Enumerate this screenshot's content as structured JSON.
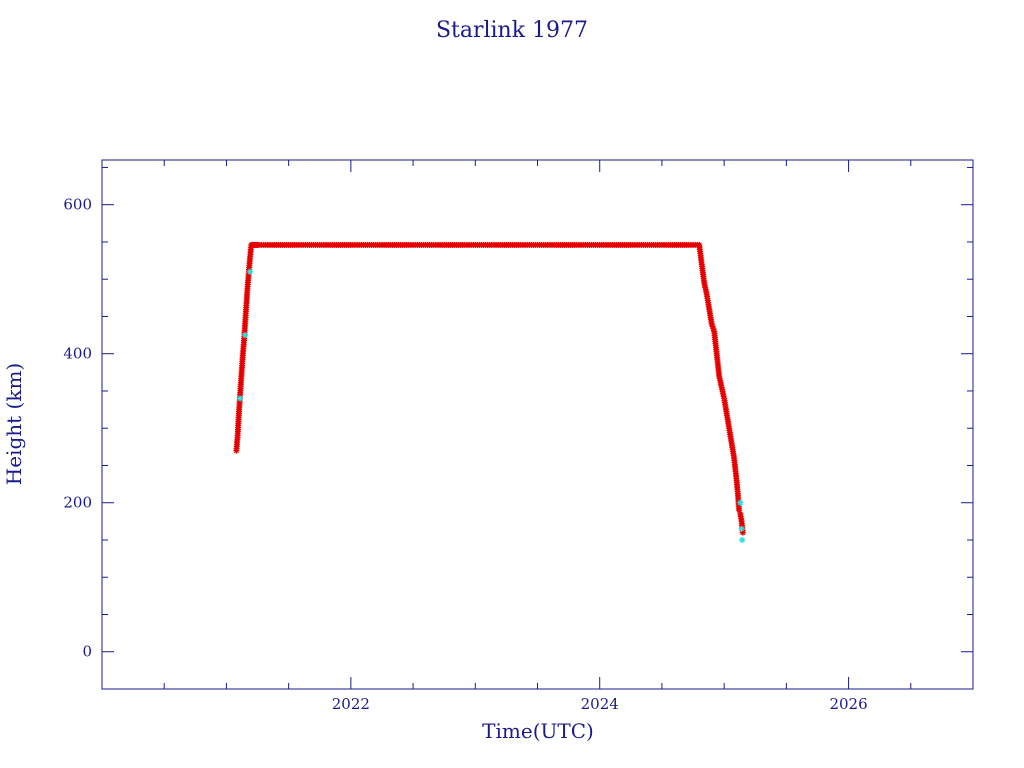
{
  "chart_data": {
    "type": "scatter",
    "title": "Starlink 1977",
    "xlabel": "Time(UTC)",
    "ylabel": "Height (km)",
    "xlim": [
      2020.0,
      2027.0
    ],
    "ylim": [
      -50,
      660
    ],
    "x_ticks": [
      2022,
      2024,
      2026
    ],
    "y_ticks": [
      0,
      200,
      400,
      600
    ],
    "grid": false,
    "colors": {
      "axis": "#1a1a8c",
      "primary": "#e60000",
      "secondary": "#33dddd"
    },
    "series": [
      {
        "marker": "star",
        "color": "#e60000",
        "x": [
          2021.08,
          2021.09,
          2021.1,
          2021.11,
          2021.12,
          2021.13,
          2021.14,
          2021.15,
          2021.16,
          2021.17,
          2021.18,
          2021.19,
          2021.2,
          2021.21,
          2021.22,
          2021.23,
          2021.24,
          2021.25,
          2021.26,
          2021.3,
          2021.4,
          2021.5,
          2021.6,
          2021.7,
          2021.8,
          2021.9,
          2022.0,
          2022.1,
          2022.2,
          2022.3,
          2022.4,
          2022.5,
          2022.6,
          2022.7,
          2022.8,
          2022.9,
          2023.0,
          2023.1,
          2023.2,
          2023.3,
          2023.4,
          2023.5,
          2023.6,
          2023.7,
          2023.8,
          2023.9,
          2024.0,
          2024.1,
          2024.2,
          2024.3,
          2024.4,
          2024.5,
          2024.6,
          2024.7,
          2024.8,
          2024.82,
          2024.84,
          2024.86,
          2024.88,
          2024.9,
          2024.92,
          2024.94,
          2024.96,
          2024.98,
          2025.0,
          2025.02,
          2025.04,
          2025.06,
          2025.08,
          2025.09,
          2025.1,
          2025.11,
          2025.12,
          2025.13,
          2025.14,
          2025.15
        ],
        "y": [
          270,
          290,
          320,
          345,
          370,
          395,
          415,
          440,
          465,
          490,
          510,
          530,
          546,
          546,
          546,
          546,
          546,
          546,
          546,
          546,
          546,
          546,
          546,
          546,
          546,
          546,
          546,
          546,
          546,
          546,
          546,
          546,
          546,
          546,
          546,
          546,
          546,
          546,
          546,
          546,
          546,
          546,
          546,
          546,
          546,
          546,
          546,
          546,
          546,
          546,
          546,
          546,
          546,
          546,
          546,
          520,
          495,
          480,
          460,
          440,
          430,
          400,
          370,
          355,
          340,
          320,
          300,
          280,
          260,
          245,
          230,
          212,
          190,
          185,
          175,
          160
        ]
      },
      {
        "marker": "star",
        "color": "#33dddd",
        "x": [
          2021.11,
          2021.15,
          2021.19,
          2025.13,
          2025.14,
          2025.145
        ],
        "y": [
          340,
          425,
          510,
          200,
          165,
          150
        ]
      }
    ]
  }
}
